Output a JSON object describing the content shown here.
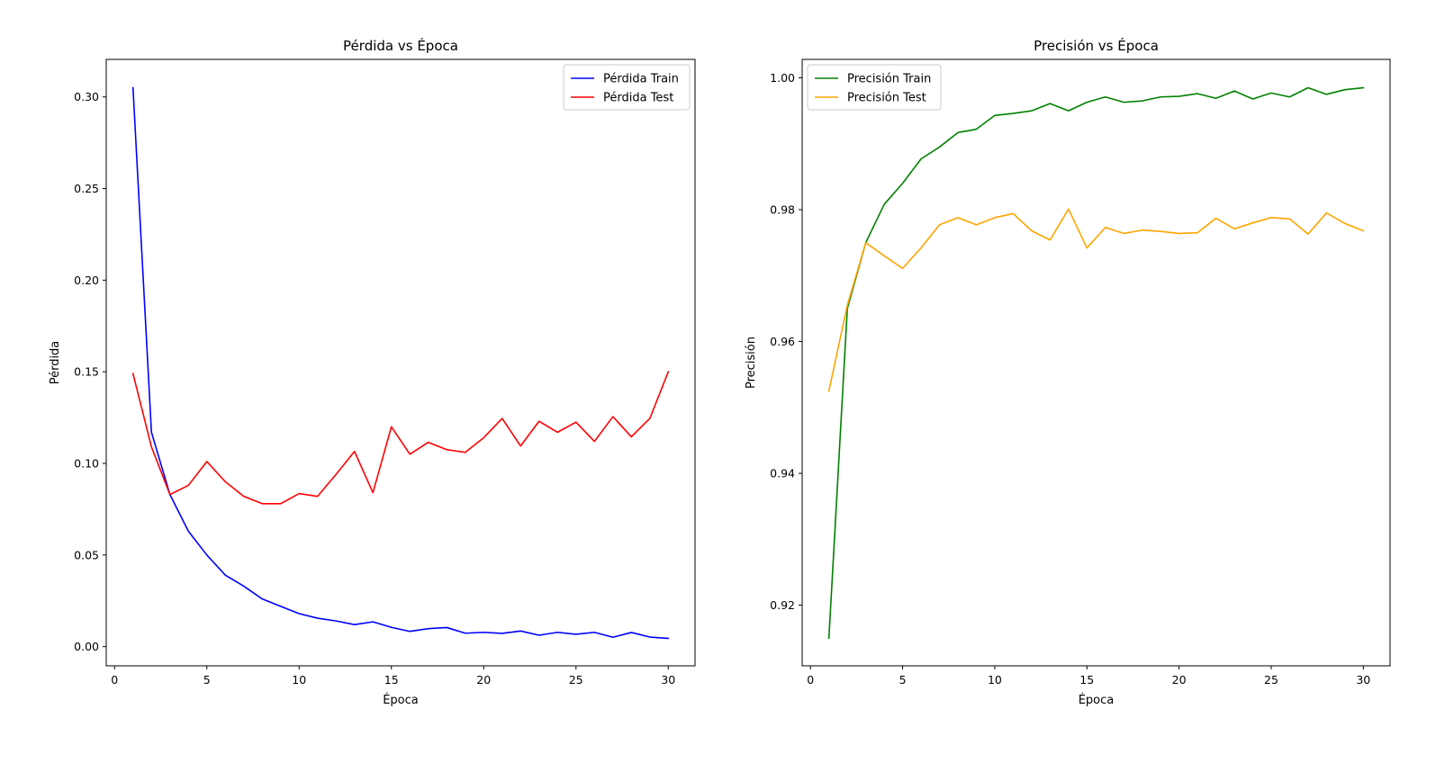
{
  "chart_data": [
    {
      "type": "line",
      "title": "Pérdida vs Época",
      "xlabel": "Época",
      "ylabel": "Pérdida",
      "xlim": [
        -0.45,
        31.45
      ],
      "ylim": [
        -0.0105,
        0.3205
      ],
      "xticks": [
        0,
        5,
        10,
        15,
        20,
        25,
        30
      ],
      "xtick_labels": [
        "0",
        "5",
        "10",
        "15",
        "20",
        "25",
        "30"
      ],
      "yticks": [
        0.0,
        0.05,
        0.1,
        0.15,
        0.2,
        0.25,
        0.3
      ],
      "ytick_labels": [
        "0.00",
        "0.05",
        "0.10",
        "0.15",
        "0.20",
        "0.25",
        "0.30"
      ],
      "legend_position": "top-right",
      "grid": false,
      "x": [
        1,
        2,
        3,
        4,
        5,
        6,
        7,
        8,
        9,
        10,
        11,
        12,
        13,
        14,
        15,
        16,
        17,
        18,
        19,
        20,
        21,
        22,
        23,
        24,
        25,
        26,
        27,
        28,
        29,
        30
      ],
      "series": [
        {
          "name": "Pérdida Train",
          "color": "#0000ff",
          "values": [
            0.305,
            0.117,
            0.083,
            0.063,
            0.05,
            0.039,
            0.033,
            0.026,
            0.022,
            0.018,
            0.0155,
            0.014,
            0.012,
            0.0135,
            0.0105,
            0.0083,
            0.0098,
            0.0104,
            0.0073,
            0.0078,
            0.0072,
            0.0085,
            0.0062,
            0.0078,
            0.0067,
            0.0078,
            0.0051,
            0.0077,
            0.0052,
            0.0045
          ]
        },
        {
          "name": "Pérdida Test",
          "color": "#ff0000",
          "values": [
            0.149,
            0.109,
            0.083,
            0.088,
            0.101,
            0.09,
            0.082,
            0.078,
            0.078,
            0.0835,
            0.082,
            0.094,
            0.1065,
            0.084,
            0.12,
            0.105,
            0.1115,
            0.1075,
            0.106,
            0.114,
            0.1245,
            0.1095,
            0.123,
            0.117,
            0.1225,
            0.112,
            0.1255,
            0.1145,
            0.1245,
            0.15
          ]
        }
      ]
    },
    {
      "type": "line",
      "title": "Precisión vs Época",
      "xlabel": "Época",
      "ylabel": "Precisión",
      "xlim": [
        -0.45,
        31.45
      ],
      "ylim": [
        0.9108,
        1.0028
      ],
      "xticks": [
        0,
        5,
        10,
        15,
        20,
        25,
        30
      ],
      "xtick_labels": [
        "0",
        "5",
        "10",
        "15",
        "20",
        "25",
        "30"
      ],
      "yticks": [
        0.92,
        0.94,
        0.96,
        0.98,
        1.0
      ],
      "ytick_labels": [
        "0.92",
        "0.94",
        "0.96",
        "0.98",
        "1.00"
      ],
      "legend_position": "top-left",
      "grid": false,
      "x": [
        1,
        2,
        3,
        4,
        5,
        6,
        7,
        8,
        9,
        10,
        11,
        12,
        13,
        14,
        15,
        16,
        17,
        18,
        19,
        20,
        21,
        22,
        23,
        24,
        25,
        26,
        27,
        28,
        29,
        30
      ],
      "series": [
        {
          "name": "Precisión Train",
          "color": "#008000",
          "values": [
            0.915,
            0.965,
            0.975,
            0.9808,
            0.984,
            0.9877,
            0.9895,
            0.9917,
            0.9922,
            0.9943,
            0.9946,
            0.995,
            0.9961,
            0.995,
            0.9963,
            0.9971,
            0.9963,
            0.9965,
            0.9971,
            0.9972,
            0.9976,
            0.9969,
            0.998,
            0.9968,
            0.9977,
            0.9971,
            0.9985,
            0.9975,
            0.9982,
            0.9985
          ]
        },
        {
          "name": "Precisión Test",
          "color": "#ffa500",
          "values": [
            0.9525,
            0.9655,
            0.975,
            0.973,
            0.9711,
            0.9742,
            0.9777,
            0.9788,
            0.9777,
            0.9788,
            0.9794,
            0.9768,
            0.9754,
            0.9801,
            0.9742,
            0.9773,
            0.9764,
            0.9769,
            0.9767,
            0.9764,
            0.9765,
            0.9787,
            0.9771,
            0.978,
            0.9788,
            0.9786,
            0.9763,
            0.9795,
            0.9779,
            0.9768
          ]
        }
      ]
    }
  ]
}
